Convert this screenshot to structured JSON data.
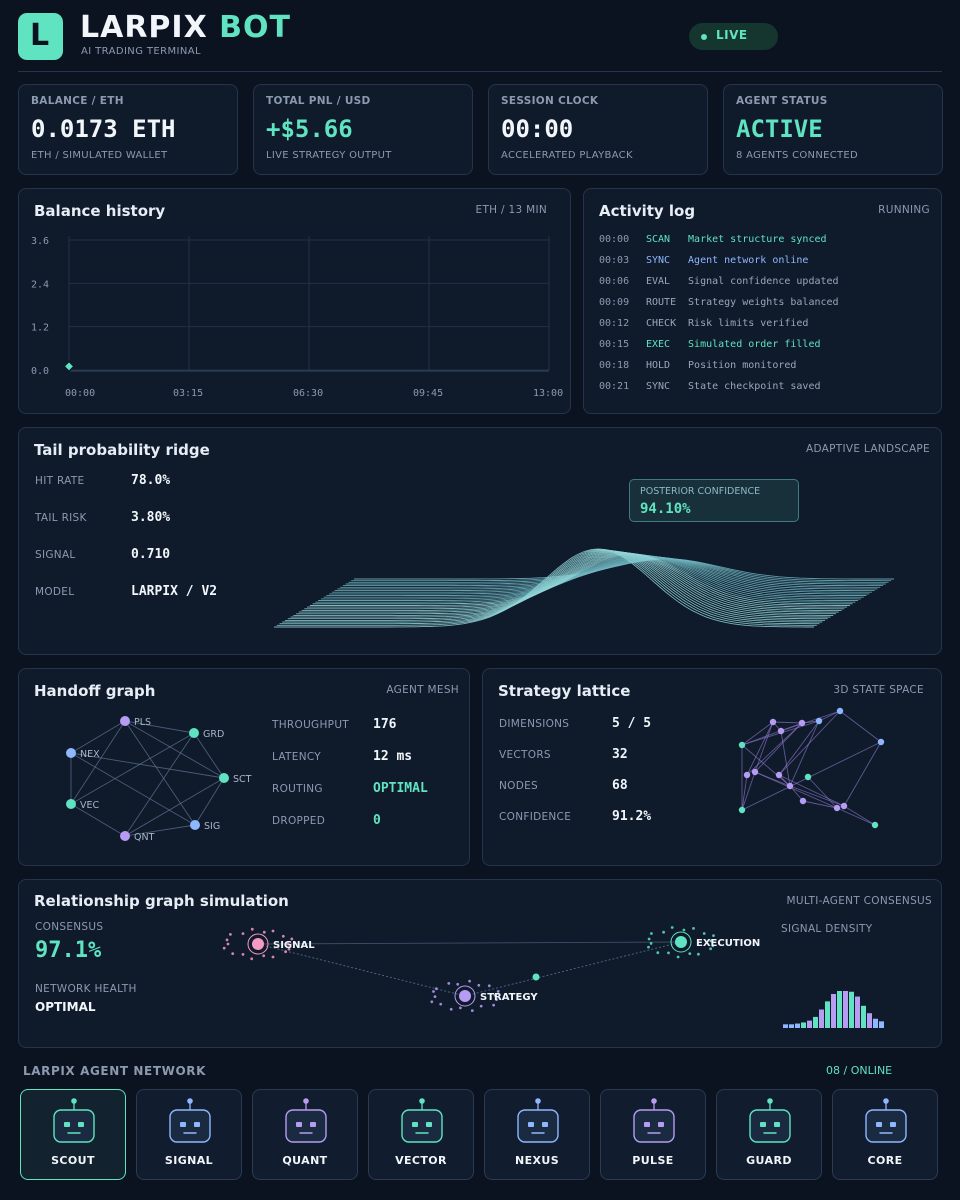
{
  "header": {
    "logo_letter": "L",
    "brand_main": "LARPIX",
    "brand_accent": "BOT",
    "tagline": "AI TRADING TERMINAL",
    "live_label": "LIVE"
  },
  "stats": [
    {
      "label": "BALANCE / ETH",
      "value": "0.0173 ETH",
      "sub": "ETH / SIMULATED WALLET",
      "color": "#f2f6fb"
    },
    {
      "label": "TOTAL PNL / USD",
      "value": "+$5.66",
      "sub": "LIVE STRATEGY OUTPUT",
      "color": "#5fe3c0"
    },
    {
      "label": "SESSION CLOCK",
      "value": "00:00",
      "sub": "ACCELERATED PLAYBACK",
      "color": "#f2f6fb"
    },
    {
      "label": "AGENT STATUS",
      "value": "ACTIVE",
      "sub": "8 AGENTS CONNECTED",
      "color": "#5fe3c0"
    }
  ],
  "balance_history": {
    "title": "Balance history",
    "meta": "ETH / 13 MIN",
    "chart_data": {
      "type": "line",
      "title": "",
      "xlabel": "",
      "ylabel": "",
      "x_ticks": [
        "00:00",
        "03:15",
        "06:30",
        "09:45",
        "13:00"
      ],
      "y_ticks": [
        "3.6",
        "2.4",
        "1.2",
        "0.0"
      ],
      "ylim": [
        0,
        3.6
      ],
      "grid": true,
      "series": [
        {
          "x": [
            "00:00"
          ],
          "values": [
            0.0173
          ]
        }
      ]
    }
  },
  "activity_log": {
    "title": "Activity log",
    "meta": "RUNNING",
    "rows": [
      {
        "time": "00:00",
        "code": "SCAN",
        "msg": "Market structure synced",
        "tone": "teal"
      },
      {
        "time": "00:03",
        "code": "SYNC",
        "msg": "Agent network online",
        "tone": "blue"
      },
      {
        "time": "00:06",
        "code": "EVAL",
        "msg": "Signal confidence updated",
        "tone": "grey"
      },
      {
        "time": "00:09",
        "code": "ROUTE",
        "msg": "Strategy weights balanced",
        "tone": "grey"
      },
      {
        "time": "00:12",
        "code": "CHECK",
        "msg": "Risk limits verified",
        "tone": "grey"
      },
      {
        "time": "00:15",
        "code": "EXEC",
        "msg": "Simulated order filled",
        "tone": "teal"
      },
      {
        "time": "00:18",
        "code": "HOLD",
        "msg": "Position monitored",
        "tone": "grey"
      },
      {
        "time": "00:21",
        "code": "SYNC",
        "msg": "State checkpoint saved",
        "tone": "grey"
      }
    ]
  },
  "tail": {
    "title": "Tail probability ridge",
    "meta": "ADAPTIVE LANDSCAPE",
    "metrics": [
      {
        "label": "HIT RATE",
        "value": "78.0%"
      },
      {
        "label": "TAIL RISK",
        "value": "3.80%"
      },
      {
        "label": "SIGNAL",
        "value": "0.710"
      },
      {
        "label": "MODEL",
        "value": "LARPIX / V2"
      }
    ],
    "posterior_label": "POSTERIOR CONFIDENCE",
    "posterior_value": "94.10%"
  },
  "handoff": {
    "title": "Handoff graph",
    "meta": "AGENT MESH",
    "nodes": [
      "PLS",
      "GRD",
      "SCT",
      "SIG",
      "QNT",
      "VEC",
      "NEX"
    ],
    "metrics": [
      {
        "label": "THROUGHPUT",
        "value": "176",
        "color": "#f2f6fb"
      },
      {
        "label": "LATENCY",
        "value": "12 ms",
        "color": "#f2f6fb"
      },
      {
        "label": "ROUTING",
        "value": "OPTIMAL",
        "color": "#5fe3c0"
      },
      {
        "label": "DROPPED",
        "value": "0",
        "color": "#5fe3c0"
      }
    ]
  },
  "lattice": {
    "title": "Strategy lattice",
    "meta": "3D STATE SPACE",
    "metrics": [
      {
        "label": "DIMENSIONS",
        "value": "5 / 5"
      },
      {
        "label": "VECTORS",
        "value": "32"
      },
      {
        "label": "NODES",
        "value": "68"
      },
      {
        "label": "CONFIDENCE",
        "value": "91.2%"
      }
    ]
  },
  "relationship": {
    "title": "Relationship graph simulation",
    "meta": "MULTI-AGENT CONSENSUS",
    "consensus_label": "CONSENSUS",
    "consensus_value": "97.1%",
    "health_label": "NETWORK HEALTH",
    "health_value": "OPTIMAL",
    "nodes": [
      "SIGNAL",
      "STRATEGY",
      "EXECUTION"
    ],
    "density_label": "SIGNAL DENSITY",
    "density": [
      0.1,
      0.1,
      0.12,
      0.15,
      0.2,
      0.3,
      0.5,
      0.72,
      0.92,
      1.0,
      1.0,
      0.98,
      0.85,
      0.6,
      0.4,
      0.25,
      0.18
    ]
  },
  "network": {
    "title": "LARPIX AGENT NETWORK",
    "online": "08 / ONLINE",
    "agents": [
      {
        "name": "SCOUT",
        "color": "#5fe3c0"
      },
      {
        "name": "SIGNAL",
        "color": "#8fb7ff"
      },
      {
        "name": "QUANT",
        "color": "#b69cf2"
      },
      {
        "name": "VECTOR",
        "color": "#5fe3c0"
      },
      {
        "name": "NEXUS",
        "color": "#8fb7ff"
      },
      {
        "name": "PULSE",
        "color": "#b69cf2"
      },
      {
        "name": "GUARD",
        "color": "#5fe3c0"
      },
      {
        "name": "CORE",
        "color": "#8fb7ff"
      }
    ]
  }
}
